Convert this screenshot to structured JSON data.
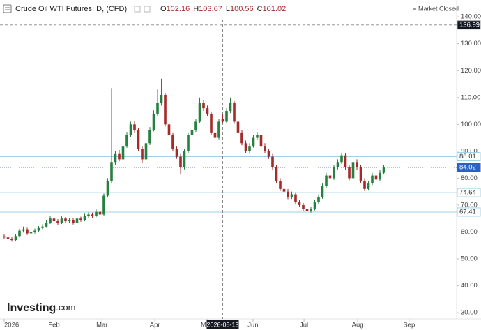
{
  "chart_data": {
    "type": "candlestick",
    "title": "Crude Oil WTI Futures, D, (CFD)",
    "status": "Market Closed",
    "logo": "Investing",
    "logo_suffix": ".com",
    "ohlc_keys": [
      "O",
      "H",
      "L",
      "C"
    ],
    "header_candle": 57,
    "up_color": "#26803f",
    "down_color": "#a52a2a",
    "ylim": [
      27.7,
      139
    ],
    "yticks": [
      {
        "value": 30,
        "label": "30.00"
      },
      {
        "value": 40,
        "label": "40.00"
      },
      {
        "value": 50,
        "label": "50.00"
      },
      {
        "value": 60,
        "label": "60.00"
      },
      {
        "value": 70,
        "label": "70.00"
      },
      {
        "value": 80,
        "label": "80.00"
      },
      {
        "value": 90,
        "label": "90.00"
      },
      {
        "value": 100,
        "label": "100.00"
      },
      {
        "value": 110,
        "label": "110.00"
      },
      {
        "value": 120,
        "label": "120.00"
      },
      {
        "value": 130,
        "label": "130.00"
      },
      {
        "value": 140,
        "label": "140.00"
      }
    ],
    "xticks": [
      {
        "value": 0,
        "label": "2026"
      },
      {
        "value": 13,
        "label": "Feb"
      },
      {
        "value": 25.5,
        "label": "Mar"
      },
      {
        "value": 39.3,
        "label": "Apr"
      },
      {
        "value": 52.9,
        "label": "May"
      },
      {
        "value": 64.9,
        "label": "Jun"
      },
      {
        "value": 78.2,
        "label": "Jul"
      },
      {
        "value": 92.2,
        "label": "Aug"
      },
      {
        "value": 105.6,
        "label": "Sep"
      }
    ],
    "crosshair": {
      "index": 57,
      "label": "2026-05-13"
    },
    "levels": [
      {
        "value": 136.99,
        "style": "dashed",
        "color": "#999999",
        "label_bg": "#131722",
        "label_fg": "#ffffff"
      },
      {
        "value": 88.01,
        "style": "solid",
        "color": "#9fd0e6",
        "label_bg": "#ffffff",
        "label_fg": "#333333"
      },
      {
        "value": 84.02,
        "style": "dotted",
        "color": "#3b5bb5",
        "label_bg": "#2962c7",
        "label_fg": "#ffffff"
      },
      {
        "value": 74.64,
        "style": "solid",
        "color": "#9fd0e6",
        "label_bg": "#ffffff",
        "label_fg": "#333333"
      },
      {
        "value": 67.41,
        "style": "solid",
        "color": "#9fd0e6",
        "label_bg": "#ffffff",
        "label_fg": "#333333"
      }
    ],
    "candles": [
      [
        58.4,
        59.2,
        57.3,
        58
      ],
      [
        58,
        58.6,
        56.8,
        57.5
      ],
      [
        57.5,
        58.2,
        56.4,
        57
      ],
      [
        57,
        59.3,
        56.6,
        58.5
      ],
      [
        58.5,
        61.2,
        58,
        60.5
      ],
      [
        60.5,
        62,
        59.8,
        61
      ],
      [
        61,
        61.6,
        58.9,
        59.5
      ],
      [
        59.5,
        60.8,
        59,
        60
      ],
      [
        60,
        61.3,
        59.4,
        60.5
      ],
      [
        60.5,
        62.2,
        60,
        61.5
      ],
      [
        61.5,
        62.9,
        61,
        62
      ],
      [
        62,
        64.3,
        61.6,
        63.5
      ],
      [
        63.5,
        65.9,
        63,
        65
      ],
      [
        65,
        65.7,
        63.4,
        64
      ],
      [
        64,
        64.8,
        62.7,
        63.5
      ],
      [
        63.5,
        65.8,
        63,
        65
      ],
      [
        65,
        65.6,
        63.3,
        64
      ],
      [
        64,
        65.3,
        63.4,
        64.5
      ],
      [
        64.5,
        65.1,
        62.8,
        63.5
      ],
      [
        63.5,
        65.8,
        63,
        65
      ],
      [
        65,
        65.7,
        63.8,
        64.5
      ],
      [
        64.5,
        66.8,
        64,
        66
      ],
      [
        66,
        67.3,
        65.4,
        66.5
      ],
      [
        66.5,
        67.2,
        65.3,
        66
      ],
      [
        66,
        68.4,
        65.5,
        67.5
      ],
      [
        67.5,
        68.2,
        65.8,
        66.5
      ],
      [
        66.5,
        74.3,
        66,
        73.5
      ],
      [
        73.5,
        80,
        72.8,
        79
      ],
      [
        79,
        113.5,
        78,
        86
      ],
      [
        86,
        90,
        84.8,
        89
      ],
      [
        89,
        90.5,
        86.2,
        87
      ],
      [
        87,
        93,
        86.4,
        92
      ],
      [
        92,
        97.2,
        91.3,
        96
      ],
      [
        96,
        101,
        95.2,
        100
      ],
      [
        100,
        101.2,
        97,
        98
      ],
      [
        98,
        98.8,
        90.2,
        91
      ],
      [
        91,
        92,
        85.8,
        87
      ],
      [
        87,
        94,
        86.4,
        93
      ],
      [
        93,
        99,
        92.3,
        98
      ],
      [
        98,
        105.2,
        97.4,
        104
      ],
      [
        104,
        113,
        103.2,
        108
      ],
      [
        108,
        117,
        107,
        111
      ],
      [
        111,
        111.8,
        99.2,
        100
      ],
      [
        100,
        101,
        95.2,
        96
      ],
      [
        96,
        97,
        90,
        91
      ],
      [
        91,
        92,
        87.2,
        88
      ],
      [
        88,
        89,
        81.5,
        84
      ],
      [
        84,
        91,
        83.3,
        90
      ],
      [
        90,
        97,
        89.4,
        96
      ],
      [
        96,
        99.2,
        95.3,
        98
      ],
      [
        98,
        102,
        97.2,
        101
      ],
      [
        101,
        110,
        100.4,
        108
      ],
      [
        108,
        108.9,
        105,
        106
      ],
      [
        106,
        107,
        103.2,
        104
      ],
      [
        104,
        104.8,
        96.2,
        97
      ],
      [
        97,
        98,
        94.2,
        95
      ],
      [
        95,
        102,
        94.4,
        101
      ],
      [
        102.16,
        103.67,
        100.56,
        101.02
      ],
      [
        101.02,
        106,
        100.4,
        105
      ],
      [
        105,
        110,
        104.2,
        108
      ],
      [
        108,
        108.7,
        100.2,
        101
      ],
      [
        101,
        102,
        96.2,
        97
      ],
      [
        97,
        98,
        92.2,
        93
      ],
      [
        93,
        94,
        89.2,
        90
      ],
      [
        90,
        93,
        89.4,
        92
      ],
      [
        92,
        96.2,
        91.4,
        95
      ],
      [
        95,
        97.2,
        94.2,
        96
      ],
      [
        96,
        96.8,
        91.2,
        92
      ],
      [
        92,
        93,
        89.2,
        90
      ],
      [
        90,
        91,
        87.2,
        88
      ],
      [
        88,
        89,
        83.2,
        84
      ],
      [
        84,
        84.8,
        78.2,
        79
      ],
      [
        79,
        80,
        75.2,
        76
      ],
      [
        76,
        77,
        74.2,
        75
      ],
      [
        75,
        76,
        72.2,
        73
      ],
      [
        73,
        75,
        72.3,
        74
      ],
      [
        74,
        74.8,
        70.2,
        71
      ],
      [
        71,
        72,
        69.2,
        70
      ],
      [
        70,
        70.8,
        67.8,
        68.5
      ],
      [
        68.5,
        69.2,
        67,
        67.8
      ],
      [
        67.8,
        69.4,
        67.2,
        68.5
      ],
      [
        68.5,
        72,
        68,
        71
      ],
      [
        71,
        74,
        70.4,
        73
      ],
      [
        73,
        78,
        72.4,
        77
      ],
      [
        77,
        82,
        76.3,
        81
      ],
      [
        81,
        82,
        79.2,
        80
      ],
      [
        80,
        85,
        79.4,
        84
      ],
      [
        84,
        87,
        83.3,
        86
      ],
      [
        86,
        89.4,
        85.3,
        88.5
      ],
      [
        88.5,
        89.2,
        83.2,
        84
      ],
      [
        84,
        85,
        79.2,
        80
      ],
      [
        80,
        87,
        79.4,
        86
      ],
      [
        86,
        87,
        83.2,
        84
      ],
      [
        84,
        85,
        78.2,
        79
      ],
      [
        79,
        80,
        75.2,
        76
      ],
      [
        76,
        79,
        75.4,
        78
      ],
      [
        78,
        82,
        77.4,
        81
      ],
      [
        81,
        82,
        78.8,
        79.5
      ],
      [
        79.5,
        83,
        79,
        82
      ],
      [
        82,
        84.8,
        81.4,
        84.02
      ]
    ]
  }
}
